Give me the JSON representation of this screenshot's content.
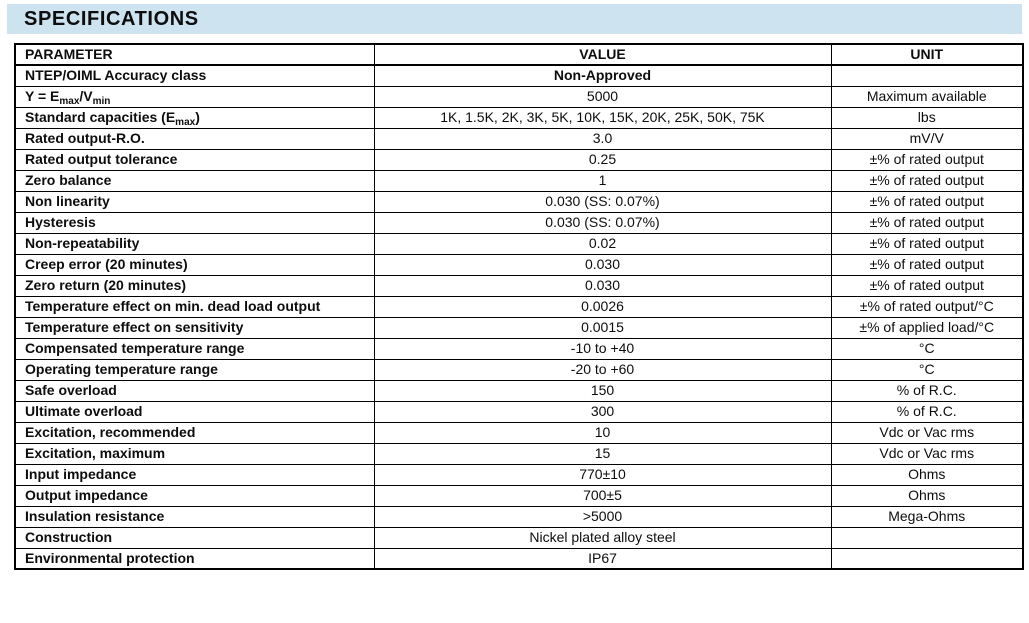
{
  "header": {
    "title": "SPECIFICATIONS",
    "background_color": "#cee3f0"
  },
  "colors": {
    "accent_bg": "#cee3f0",
    "table_border": "#000000",
    "text": "#0d0d0d",
    "page_bg": "#ffffff"
  },
  "table": {
    "headers": [
      "PARAMETER",
      "VALUE",
      "UNIT"
    ],
    "rows": [
      {
        "parameter": "NTEP/OIML Accuracy class",
        "value": "Non-Approved",
        "unit": ""
      },
      {
        "parameter_parts": {
          "p1": "Y = E",
          "s1": "max",
          "p2": "/V",
          "s2": "min"
        },
        "parameter": "Y = Emax/Vmin",
        "value": "5000",
        "unit": "Maximum available"
      },
      {
        "parameter_parts": {
          "p1": "Standard capacities (E",
          "s1": "max",
          "p2": ")"
        },
        "parameter": "Standard capacities (Emax)",
        "value": "1K, 1.5K, 2K, 3K, 5K, 10K, 15K, 20K, 25K, 50K, 75K",
        "unit": "lbs"
      },
      {
        "parameter": "Rated output-R.O.",
        "value": "3.0",
        "unit": "mV/V"
      },
      {
        "parameter": "Rated output tolerance",
        "value": "0.25",
        "unit": "±% of rated output"
      },
      {
        "parameter": "Zero balance",
        "value": "1",
        "unit": "±% of rated output"
      },
      {
        "parameter": "Non linearity",
        "value": "0.030 (SS: 0.07%)",
        "unit": "±% of rated output"
      },
      {
        "parameter": "Hysteresis",
        "value": "0.030 (SS: 0.07%)",
        "unit": "±% of rated output"
      },
      {
        "parameter": "Non-repeatability",
        "value": "0.02",
        "unit": "±% of rated output"
      },
      {
        "parameter": "Creep error (20 minutes)",
        "value": "0.030",
        "unit": "±% of rated output"
      },
      {
        "parameter": "Zero return (20 minutes)",
        "value": "0.030",
        "unit": "±% of rated output"
      },
      {
        "parameter": "Temperature effect on min. dead load output",
        "value": "0.0026",
        "unit": "±% of rated output/°C"
      },
      {
        "parameter": "Temperature effect on sensitivity",
        "value": "0.0015",
        "unit": "±% of applied load/°C"
      },
      {
        "parameter": "Compensated temperature range",
        "value": "-10 to +40",
        "unit": "°C"
      },
      {
        "parameter": "Operating temperature range",
        "value": "-20 to +60",
        "unit": "°C"
      },
      {
        "parameter": "Safe overload",
        "value": "150",
        "unit": "% of R.C."
      },
      {
        "parameter": "Ultimate overload",
        "value": "300",
        "unit": "% of R.C."
      },
      {
        "parameter": "Excitation, recommended",
        "value": "10",
        "unit": "Vdc or Vac rms"
      },
      {
        "parameter": "Excitation, maximum",
        "value": "15",
        "unit": "Vdc or Vac rms"
      },
      {
        "parameter": "Input impedance",
        "value": "770±10",
        "unit": "Ohms"
      },
      {
        "parameter": "Output impedance",
        "value": "700±5",
        "unit": "Ohms"
      },
      {
        "parameter": "Insulation resistance",
        "value": ">5000",
        "unit": "Mega-Ohms"
      },
      {
        "parameter": "Construction",
        "value": "Nickel plated alloy steel",
        "unit": ""
      },
      {
        "parameter": "Environmental protection",
        "value": "IP67",
        "unit": ""
      }
    ]
  }
}
